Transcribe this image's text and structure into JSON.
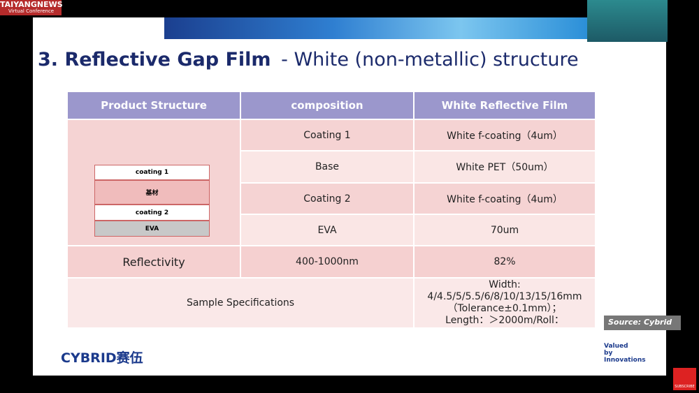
{
  "header": {
    "logo": "TAIYANGNEWS",
    "logo_sub": "Virtual Conference"
  },
  "slide": {
    "title_bold": "3. Reflective Gap Film",
    "title_rest": "- White (non-metallic) structure",
    "table": {
      "columns": [
        "Product Structure",
        "composition",
        "White Reflective Film"
      ],
      "layer_rows": [
        [
          "Coating 1",
          "White f-coating（4um）"
        ],
        [
          "Base",
          "White PET（50um）"
        ],
        [
          "Coating 2",
          "White f-coating（4um）"
        ],
        [
          "EVA",
          "70um"
        ]
      ],
      "reflectivity": [
        "Reflectivity",
        "400-1000nm",
        "82%"
      ],
      "sample": {
        "label": "Sample Specifications",
        "lines": [
          "Width: 4/4.5/5/5.5/6/8/10/13/15/16mm",
          "（Tolerance±0.1mm）；",
          "Length：＞2000m/Roll："
        ]
      }
    },
    "diagram": {
      "layers": [
        "coating 1",
        "基材",
        "coating 2",
        "EVA"
      ]
    },
    "source": "Source: Cybrid",
    "brand": "CYBRID",
    "brand_cn": "赛伍",
    "tagline": [
      "Valued",
      "by",
      "Innovations"
    ]
  },
  "subscribe": "SUBSCRIBE"
}
